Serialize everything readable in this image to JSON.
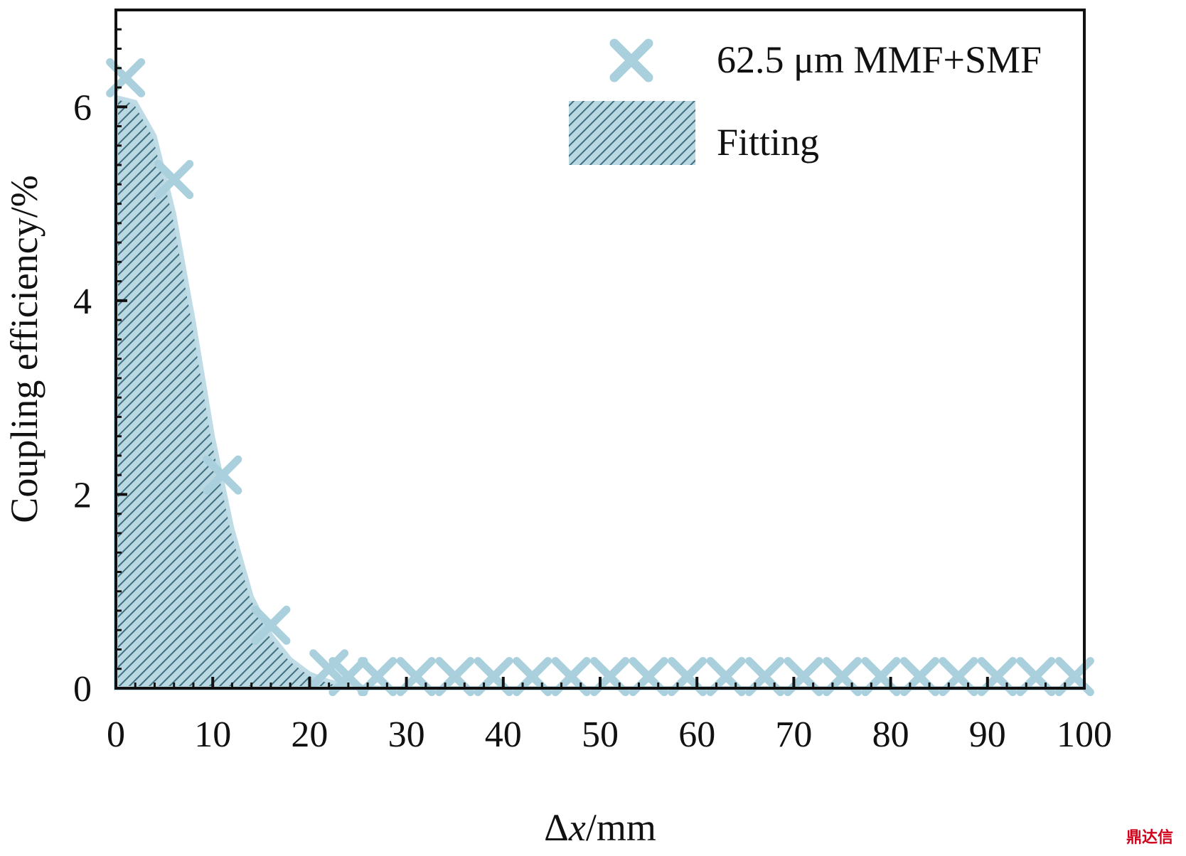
{
  "chart_data": {
    "type": "scatter",
    "xlabel_symbol": "Δ",
    "xlabel_var": "x",
    "xlabel_unit": "/mm",
    "ylabel": "Coupling efficiency/%",
    "xlim": [
      0,
      100
    ],
    "ylim": [
      0,
      7
    ],
    "xticks": [
      0,
      10,
      20,
      30,
      40,
      50,
      60,
      70,
      80,
      90,
      100
    ],
    "yticks": [
      0,
      2,
      4,
      6
    ],
    "grid": false,
    "legend_position": "top-right",
    "series": [
      {
        "name": "62.5 μm MMF+SMF",
        "kind": "scatter",
        "marker": "x",
        "color": "#a9d0dc",
        "x": [
          1,
          6,
          11,
          16,
          22,
          24,
          27,
          31,
          35,
          39,
          43,
          47,
          51,
          55,
          59,
          63,
          67,
          71,
          75,
          79,
          83,
          87,
          91,
          95,
          99
        ],
        "y": [
          6.3,
          5.25,
          2.2,
          0.65,
          0.2,
          0.12,
          0.12,
          0.12,
          0.12,
          0.12,
          0.12,
          0.12,
          0.12,
          0.12,
          0.12,
          0.12,
          0.12,
          0.12,
          0.12,
          0.12,
          0.12,
          0.12,
          0.12,
          0.12,
          0.12
        ]
      },
      {
        "name": "Fitting",
        "kind": "area",
        "color": "#5d93a6",
        "x": [
          0,
          2,
          4,
          6,
          8,
          10,
          12,
          14,
          16,
          18,
          20,
          22,
          24,
          26,
          28,
          30,
          100
        ],
        "y": [
          6.1,
          6.05,
          5.7,
          4.9,
          3.8,
          2.6,
          1.65,
          0.95,
          0.55,
          0.3,
          0.15,
          0.07,
          0.03,
          0.01,
          0.0,
          0.0,
          0.0
        ]
      }
    ]
  },
  "watermark": {
    "text": "鼎达信"
  }
}
